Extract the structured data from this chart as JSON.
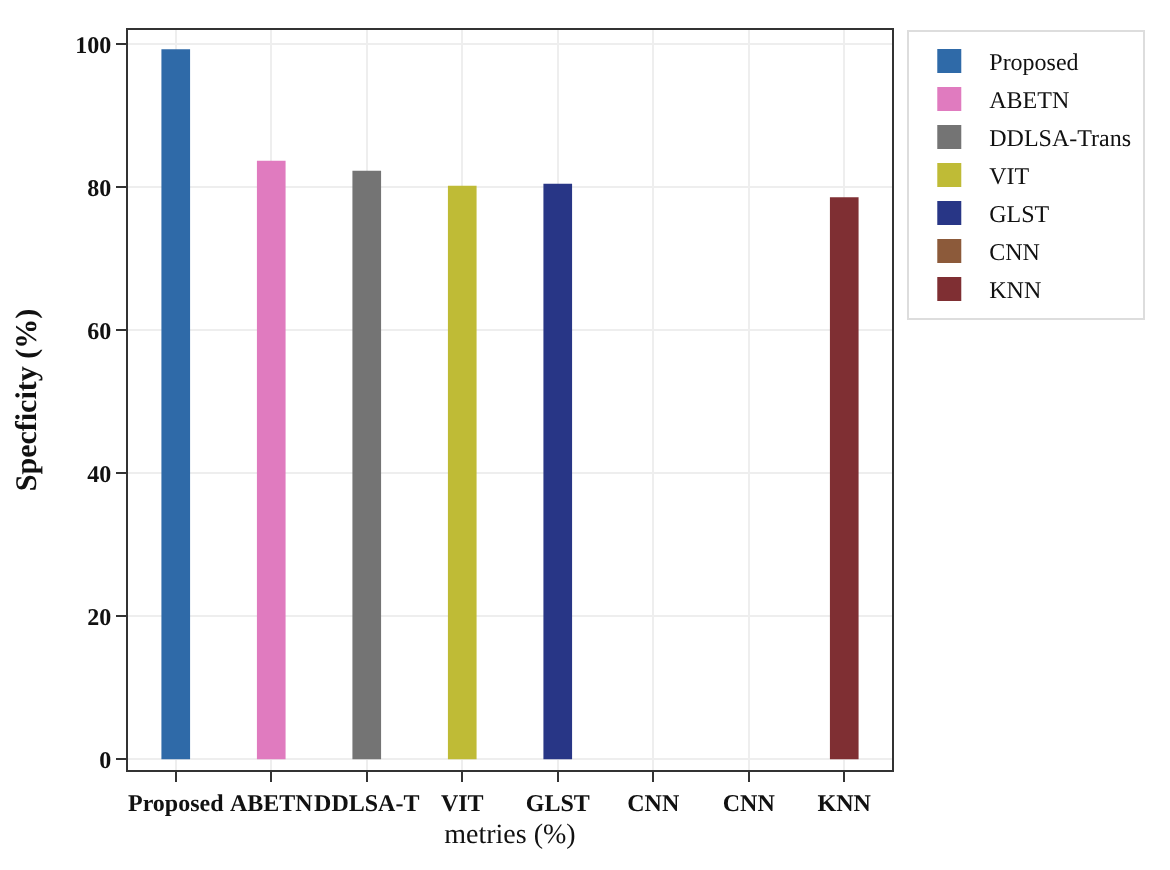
{
  "chart_data": {
    "type": "bar",
    "xlabel": "metries (%)",
    "ylabel": "Specficity (%)",
    "categories": [
      "Proposed",
      "ABETN",
      "DDLSA-T",
      "VIT",
      "GLST",
      "CNN",
      "CNN",
      "KNN"
    ],
    "series": [
      {
        "name": "Proposed",
        "color": "#2f6aa8",
        "values": [
          99.3,
          null,
          null,
          null,
          null,
          null,
          null,
          null
        ]
      },
      {
        "name": "ABETN",
        "color": "#e07bbf",
        "values": [
          null,
          83.7,
          null,
          null,
          null,
          null,
          null,
          null
        ]
      },
      {
        "name": "DDLSA-Trans",
        "color": "#747474",
        "values": [
          null,
          null,
          82.3,
          null,
          null,
          null,
          null,
          null
        ]
      },
      {
        "name": "VIT",
        "color": "#bfbb36",
        "values": [
          null,
          null,
          null,
          80.2,
          null,
          null,
          null,
          null
        ]
      },
      {
        "name": "GLST",
        "color": "#283686",
        "values": [
          null,
          null,
          null,
          null,
          80.5,
          null,
          null,
          null
        ]
      },
      {
        "name": "CNN",
        "color": "#8c5a3a",
        "values": [
          null,
          null,
          null,
          null,
          null,
          null,
          null,
          null
        ]
      },
      {
        "name": "KNN",
        "color": "#7f2f33",
        "values": [
          null,
          null,
          null,
          null,
          null,
          null,
          null,
          78.6
        ]
      }
    ],
    "ylim": [
      -1.5,
      102
    ],
    "yticks": [
      0,
      20,
      40,
      60,
      80,
      100
    ],
    "grid": true,
    "legend": "top right"
  }
}
